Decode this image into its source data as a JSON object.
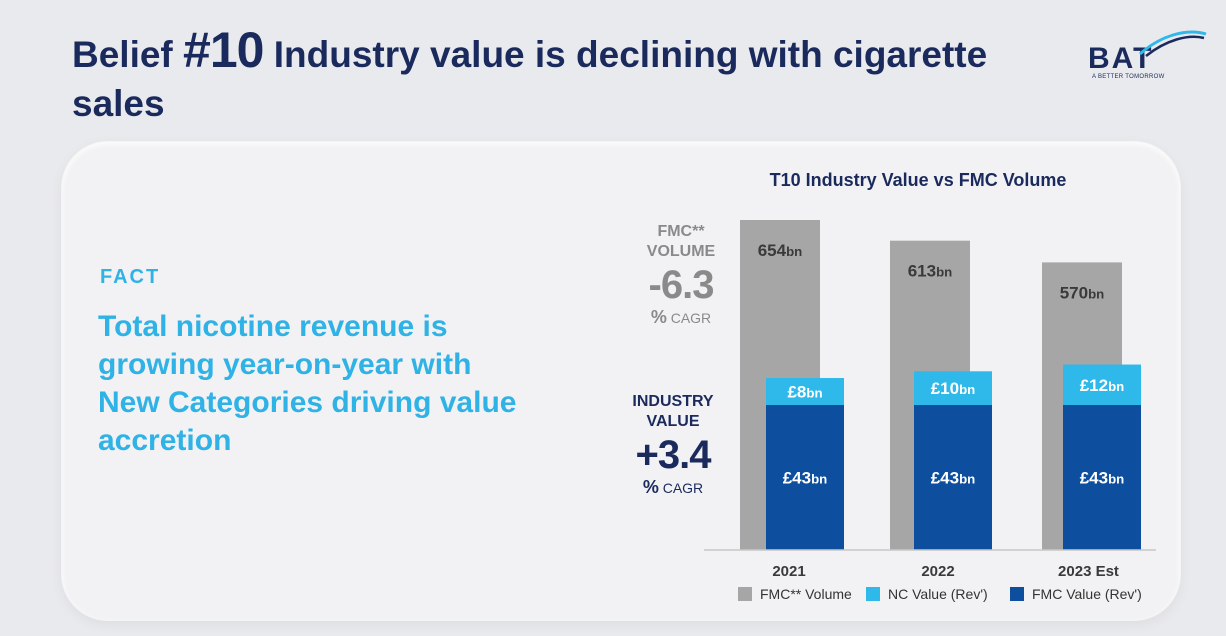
{
  "page": {
    "title_prefix": "Belief ",
    "title_number": "#10",
    "title_rest": " Industry value is declining with cigarette sales"
  },
  "logo": {
    "text": "BAT",
    "tagline": "A BETTER TOMORROW"
  },
  "fact": {
    "label": "FACT",
    "text": "Total nicotine revenue is growing year-on-year with New Categories driving value accretion"
  },
  "cagr": {
    "fmc": {
      "line1": "FMC**",
      "line2": "VOLUME",
      "value": "-6.3",
      "unit_symbol": "%",
      "unit_text": "CAGR"
    },
    "industry": {
      "line1": "INDUSTRY",
      "line2": "VALUE",
      "value": "+3.4",
      "unit_symbol": "%",
      "unit_text": "CAGR"
    }
  },
  "colors": {
    "fmc_volume": "#a6a6a6",
    "nc_value": "#2fb9ea",
    "fmc_value": "#0d4f9e",
    "navy": "#1b2a5c"
  },
  "chart_data": {
    "type": "bar",
    "title": "T10 Industry Value vs FMC Volume",
    "categories": [
      "2021",
      "2022",
      "2023 Est"
    ],
    "series": [
      {
        "name": "FMC** Volume",
        "values": [
          654,
          613,
          570
        ],
        "labels": [
          "654bn",
          "613bn",
          "570bn"
        ]
      },
      {
        "name": "NC Value (Rev')",
        "values": [
          8,
          10,
          12
        ],
        "labels": [
          "£8bn",
          "£10bn",
          "£12bn"
        ]
      },
      {
        "name": "FMC Value (Rev')",
        "values": [
          43,
          43,
          43
        ],
        "labels": [
          "£43bn",
          "£43bn",
          "£43bn"
        ]
      }
    ],
    "legend": [
      "FMC** Volume",
      "NC Value (Rev')",
      "FMC Value (Rev')"
    ],
    "legend_position": "bottom"
  }
}
